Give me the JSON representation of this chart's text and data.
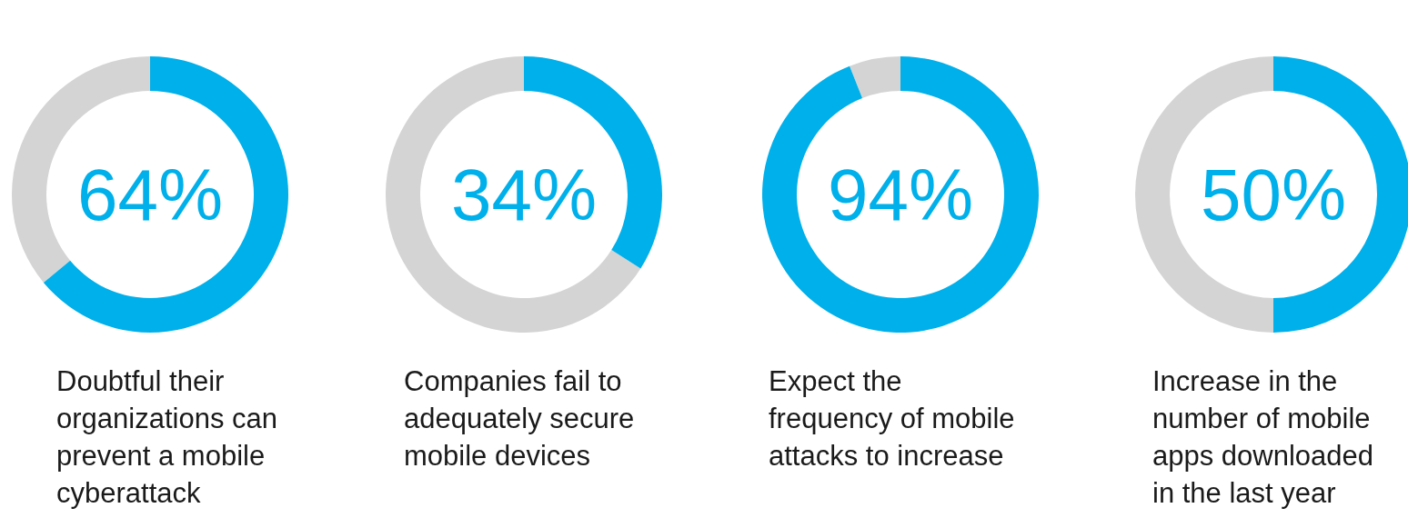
{
  "chart_data": [
    {
      "type": "donut",
      "title": "Doubtful their organizations can prevent a mobile cyberattack",
      "annotations": [
        "64%"
      ],
      "values": [
        64,
        36
      ],
      "colors": [
        "#00b0ea",
        "#d4d4d4"
      ]
    },
    {
      "type": "donut",
      "title": "Companies fail to adequately secure mobile devices",
      "annotations": [
        "34%"
      ],
      "values": [
        34,
        66
      ],
      "colors": [
        "#00b0ea",
        "#d4d4d4"
      ]
    },
    {
      "type": "donut",
      "title": "Expect the frequency of mobile attacks to increase",
      "annotations": [
        "94%"
      ],
      "values": [
        94,
        6
      ],
      "colors": [
        "#00b0ea",
        "#d4d4d4"
      ]
    },
    {
      "type": "donut",
      "title": "Increase in the number of mobile apps downloaded in the last year",
      "annotations": [
        "50%"
      ],
      "values": [
        50,
        50
      ],
      "colors": [
        "#00b0ea",
        "#d4d4d4"
      ]
    }
  ]
}
